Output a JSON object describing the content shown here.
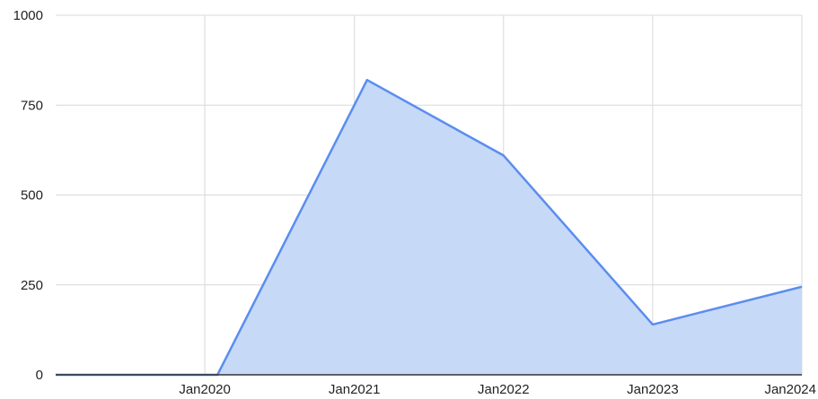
{
  "chart_data": {
    "type": "area",
    "title": "",
    "xlabel": "",
    "ylabel": "",
    "x": [
      "2019-01-01",
      "2020-01-01",
      "2020-02-01",
      "2021-02-01",
      "2022-01-01",
      "2023-01-01",
      "2024-01-01"
    ],
    "series": [
      {
        "values": [
          0,
          0,
          0,
          820,
          610,
          140,
          245
        ]
      }
    ],
    "x_ticks": [
      "Jan2020",
      "Jan2021",
      "Jan2022",
      "Jan2023",
      "Jan2024"
    ],
    "y_ticks": [
      "0",
      "250",
      "500",
      "750",
      "1000"
    ],
    "ylim": [
      0,
      1000
    ],
    "grid": true,
    "line_color": "#5b8def",
    "fill_color": "#c6d9f7"
  }
}
